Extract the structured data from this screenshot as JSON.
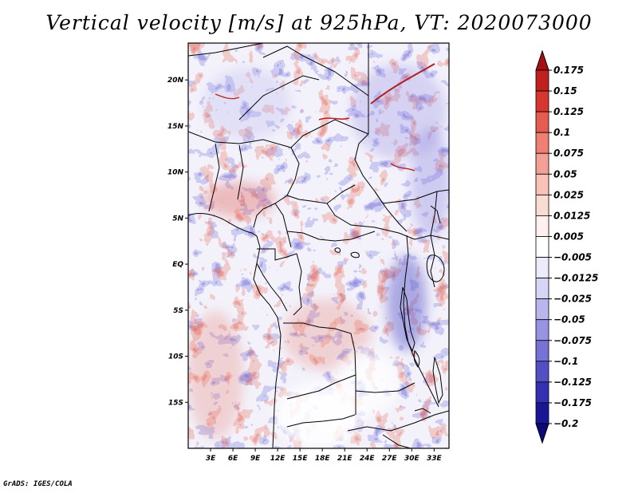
{
  "title": "Vertical velocity [m/s] at 925hPa, VT: 2020073000",
  "credit": "GrADS: IGES/COLA",
  "map": {
    "lon_range": [
      0,
      35
    ],
    "lat_range": [
      -20,
      24
    ],
    "lat_ticks": [
      {
        "value": 20,
        "label": "20N"
      },
      {
        "value": 15,
        "label": "15N"
      },
      {
        "value": 10,
        "label": "10N"
      },
      {
        "value": 5,
        "label": "5N"
      },
      {
        "value": 0,
        "label": "EQ"
      },
      {
        "value": -5,
        "label": "5S"
      },
      {
        "value": -10,
        "label": "10S"
      },
      {
        "value": -15,
        "label": "15S"
      }
    ],
    "lon_ticks": [
      {
        "value": 3,
        "label": "3E"
      },
      {
        "value": 6,
        "label": "6E"
      },
      {
        "value": 9,
        "label": "9E"
      },
      {
        "value": 12,
        "label": "12E"
      },
      {
        "value": 15,
        "label": "15E"
      },
      {
        "value": 18,
        "label": "18E"
      },
      {
        "value": 21,
        "label": "21E"
      },
      {
        "value": 24,
        "label": "24E"
      },
      {
        "value": 27,
        "label": "27E"
      },
      {
        "value": 30,
        "label": "30E"
      },
      {
        "value": 33,
        "label": "33E"
      }
    ]
  },
  "colorbar": {
    "labels": [
      "0.175",
      "0.15",
      "0.125",
      "0.1",
      "0.075",
      "0.05",
      "0.025",
      "0.0125",
      "0.005",
      "-0.005",
      "-0.0125",
      "-0.025",
      "-0.05",
      "-0.075",
      "-0.1",
      "-0.125",
      "-0.175",
      "-0.2"
    ],
    "colors": [
      "#a50f15",
      "#c1201e",
      "#d7362f",
      "#e55b4f",
      "#ee7f72",
      "#f4a195",
      "#f8c2b8",
      "#fbdcd5",
      "#fdf0ee",
      "#ffffff",
      "#ecebfb",
      "#d7d5f6",
      "#b9b6ee",
      "#9894e3",
      "#7672d6",
      "#5350c6",
      "#3330b2",
      "#1a1796",
      "#0c0a7a"
    ]
  }
}
